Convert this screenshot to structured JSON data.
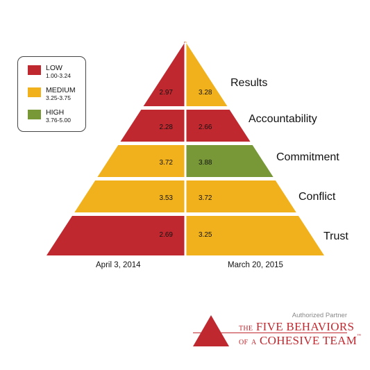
{
  "colors": {
    "low": "#c0282f",
    "medium": "#f0b11d",
    "high": "#789838",
    "brand": "#c0282f"
  },
  "legend": {
    "items": [
      {
        "label": "LOW",
        "range": "1.00-3.24",
        "level": "low"
      },
      {
        "label": "MEDIUM",
        "range": "3.25-3.75",
        "level": "medium"
      },
      {
        "label": "HIGH",
        "range": "3.76-5.00",
        "level": "high"
      }
    ]
  },
  "chart_data": {
    "type": "pyramid",
    "categories": [
      "Results",
      "Accountability",
      "Commitment",
      "Conflict",
      "Trust"
    ],
    "series": [
      {
        "name": "April 3, 2014",
        "values": [
          2.97,
          2.28,
          3.72,
          3.53,
          2.69
        ],
        "levels": [
          "low",
          "low",
          "medium",
          "medium",
          "low"
        ]
      },
      {
        "name": "March 20, 2015",
        "values": [
          3.28,
          2.66,
          3.88,
          3.72,
          3.25
        ],
        "levels": [
          "medium",
          "low",
          "high",
          "medium",
          "medium"
        ]
      }
    ],
    "value_labels": [
      [
        "2.97",
        "2.28",
        "3.72",
        "3.53",
        "2.69"
      ],
      [
        "3.28",
        "2.66",
        "3.88",
        "3.72",
        "3.25"
      ]
    ]
  },
  "branding": {
    "authorized": "Authorized Partner",
    "line1_small": "THE",
    "line1_main": "FIVE BEHAVIORS",
    "line2_small1": "OF",
    "line2_small2": "A",
    "line2_main": "COHESIVE TEAM",
    "trademark": "™"
  }
}
